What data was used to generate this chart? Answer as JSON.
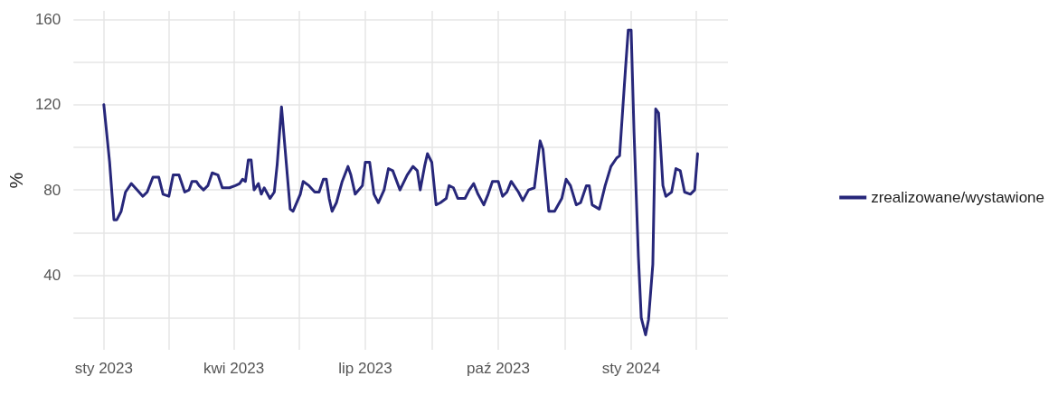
{
  "chart_data": {
    "type": "line",
    "ylabel": "%",
    "legend": "right",
    "grid": true,
    "marker": "none",
    "line_style": "solid",
    "xlim": [
      "2022-12-11",
      "2024-03-08"
    ],
    "ylim": [
      5,
      164
    ],
    "xticks": [
      {
        "value": "2023-01-01",
        "label": "sty 2023"
      },
      {
        "value": "2023-02-15",
        "label": null
      },
      {
        "value": "2023-04-01",
        "label": "kwi 2023"
      },
      {
        "value": "2023-05-16",
        "label": null
      },
      {
        "value": "2023-07-01",
        "label": "lip 2023"
      },
      {
        "value": "2023-08-16",
        "label": null
      },
      {
        "value": "2023-10-01",
        "label": "paź 2023"
      },
      {
        "value": "2023-11-16",
        "label": null
      },
      {
        "value": "2024-01-01",
        "label": "sty 2024"
      },
      {
        "value": "2024-02-15",
        "label": null
      }
    ],
    "yticks": [
      {
        "value": 20,
        "label": null
      },
      40,
      {
        "value": 60,
        "label": null
      },
      80,
      {
        "value": 100,
        "label": null
      },
      120,
      {
        "value": 140,
        "label": null
      },
      160
    ],
    "x": [
      "2023-01-01",
      "2023-01-05",
      "2023-01-08",
      "2023-01-10",
      "2023-01-13",
      "2023-01-16",
      "2023-01-20",
      "2023-01-24",
      "2023-01-28",
      "2023-01-31",
      "2023-02-04",
      "2023-02-08",
      "2023-02-11",
      "2023-02-15",
      "2023-02-18",
      "2023-02-22",
      "2023-02-26",
      "2023-03-01",
      "2023-03-03",
      "2023-03-06",
      "2023-03-08",
      "2023-03-11",
      "2023-03-14",
      "2023-03-17",
      "2023-03-21",
      "2023-03-24",
      "2023-03-29",
      "2023-04-02",
      "2023-04-05",
      "2023-04-07",
      "2023-04-09",
      "2023-04-11",
      "2023-04-13",
      "2023-04-15",
      "2023-04-18",
      "2023-04-20",
      "2023-04-22",
      "2023-04-26",
      "2023-04-29",
      "2023-05-01",
      "2023-05-04",
      "2023-05-06",
      "2023-05-10",
      "2023-05-12",
      "2023-05-17",
      "2023-05-19",
      "2023-05-23",
      "2023-05-27",
      "2023-05-30",
      "2023-06-02",
      "2023-06-04",
      "2023-06-06",
      "2023-06-08",
      "2023-06-11",
      "2023-06-15",
      "2023-06-19",
      "2023-06-21",
      "2023-06-24",
      "2023-06-29",
      "2023-07-01",
      "2023-07-04",
      "2023-07-07",
      "2023-07-10",
      "2023-07-14",
      "2023-07-17",
      "2023-07-20",
      "2023-07-25",
      "2023-07-30",
      "2023-08-03",
      "2023-08-06",
      "2023-08-08",
      "2023-08-11",
      "2023-08-13",
      "2023-08-16",
      "2023-08-19",
      "2023-08-22",
      "2023-08-26",
      "2023-08-28",
      "2023-08-31",
      "2023-09-03",
      "2023-09-08",
      "2023-09-11",
      "2023-09-14",
      "2023-09-17",
      "2023-09-21",
      "2023-09-24",
      "2023-09-27",
      "2023-10-01",
      "2023-10-04",
      "2023-10-07",
      "2023-10-10",
      "2023-10-15",
      "2023-10-18",
      "2023-10-22",
      "2023-10-26",
      "2023-10-30",
      "2023-11-01",
      "2023-11-05",
      "2023-11-09",
      "2023-11-14",
      "2023-11-17",
      "2023-11-20",
      "2023-11-24",
      "2023-11-27",
      "2023-12-01",
      "2023-12-03",
      "2023-12-05",
      "2023-12-10",
      "2023-12-14",
      "2023-12-18",
      "2023-12-22",
      "2023-12-24",
      "2023-12-26",
      "2023-12-28",
      "2023-12-30",
      "2024-01-01",
      "2024-01-03",
      "2024-01-06",
      "2024-01-08",
      "2024-01-11",
      "2024-01-13",
      "2024-01-16",
      "2024-01-18",
      "2024-01-20",
      "2024-01-23",
      "2024-01-25",
      "2024-01-29",
      "2024-02-01",
      "2024-02-04",
      "2024-02-07",
      "2024-02-11",
      "2024-02-14",
      "2024-02-16"
    ],
    "series": [
      {
        "name": "zrealizowane/wystawione",
        "color": "#27277a",
        "values": [
          120,
          93,
          66,
          66,
          70,
          79,
          83,
          80,
          77,
          79,
          86,
          86,
          78,
          77,
          87,
          87,
          79,
          80,
          84,
          84,
          82,
          80,
          82,
          88,
          87,
          81,
          81,
          82,
          83,
          85,
          84,
          94,
          94,
          80,
          83,
          78,
          81,
          76,
          79,
          92,
          119,
          103,
          71,
          70,
          78,
          84,
          82,
          79,
          79,
          85,
          85,
          76,
          70,
          74,
          84,
          91,
          87,
          78,
          82,
          93,
          93,
          78,
          74,
          80,
          90,
          89,
          80,
          87,
          91,
          89,
          80,
          91,
          97,
          93,
          73,
          74,
          76,
          82,
          81,
          76,
          76,
          80,
          83,
          78,
          73,
          78,
          84,
          84,
          77,
          79,
          84,
          79,
          75,
          80,
          81,
          103,
          99,
          70,
          70,
          76,
          85,
          82,
          73,
          74,
          82,
          82,
          73,
          71,
          82,
          91,
          95,
          96,
          116,
          136,
          155,
          155,
          107,
          49,
          20,
          12,
          19,
          45,
          118,
          116,
          82,
          77,
          79,
          90,
          89,
          79,
          78,
          80,
          97
        ]
      }
    ]
  }
}
